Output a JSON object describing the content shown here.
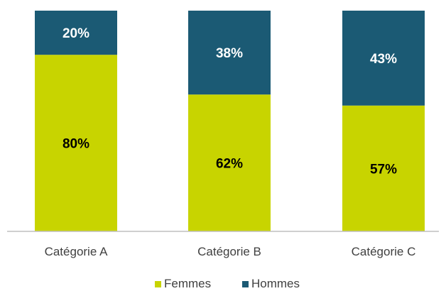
{
  "chart_data": {
    "type": "bar",
    "stacked": true,
    "categories": [
      "Catégorie A",
      "Catégorie B",
      "Catégorie C"
    ],
    "series": [
      {
        "name": "Femmes",
        "values": [
          80,
          62,
          57
        ],
        "color": "#c8d400",
        "label_color": "#000000"
      },
      {
        "name": "Hommes",
        "values": [
          20,
          38,
          43
        ],
        "color": "#1b5a74",
        "label_color": "#ffffff"
      }
    ],
    "value_suffix": "%",
    "ylim": [
      0,
      100
    ],
    "grid": false,
    "legend_position": "bottom",
    "title": "",
    "xlabel": "",
    "ylabel": ""
  }
}
